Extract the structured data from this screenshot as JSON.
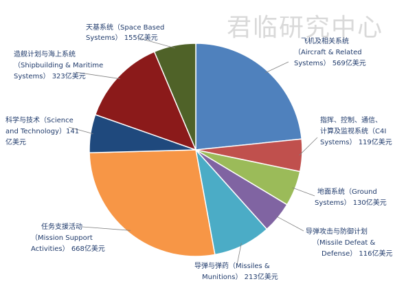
{
  "watermark": "君临研究中心",
  "chart_data": {
    "type": "pie",
    "unit": "亿美元",
    "start_angle_deg": 90,
    "direction": "clockwise",
    "slices": [
      {
        "id": "aircraft",
        "cn": "飞机及相关系统",
        "en": "（Aircraft & Related",
        "en2": "Systems）",
        "value": 569,
        "color": "#4f81bd"
      },
      {
        "id": "c4i",
        "cn": "指挥、控制、通信、",
        "cn2": "计算及监视系统（C4I",
        "en": "Systems）",
        "value": 119,
        "color": "#c0504d"
      },
      {
        "id": "ground",
        "cn": "地面系统（Ground",
        "en": "Systems）",
        "value": 130,
        "color": "#9bbb59"
      },
      {
        "id": "missile_defeat",
        "cn": "导弹攻击与防御计划",
        "en": "（Missile Defeat &",
        "en2": "Defense）",
        "value": 116,
        "color": "#8064a2"
      },
      {
        "id": "missiles",
        "cn": "导弹与弹药（Missiles &",
        "en": "Munitions）",
        "value": 213,
        "color": "#4bacc6"
      },
      {
        "id": "mission",
        "cn": "任务支援活动",
        "en": "（Mission Support",
        "en2": "Activities）",
        "value": 668,
        "color": "#f79646"
      },
      {
        "id": "science",
        "cn": "科学与技术（Science",
        "en": "and Technology）141",
        "en2": "亿美元",
        "value": 141,
        "color": "#1f497d"
      },
      {
        "id": "ship",
        "cn": "造舰计划与海上系统",
        "en": "（Shipbuilding & Maritime",
        "en2": "Systems）",
        "value": 323,
        "color": "#8b1a1a"
      },
      {
        "id": "space",
        "cn": "天基系统（Space Based",
        "en": "Systems）",
        "value": 155,
        "color": "#4f6228"
      }
    ]
  }
}
